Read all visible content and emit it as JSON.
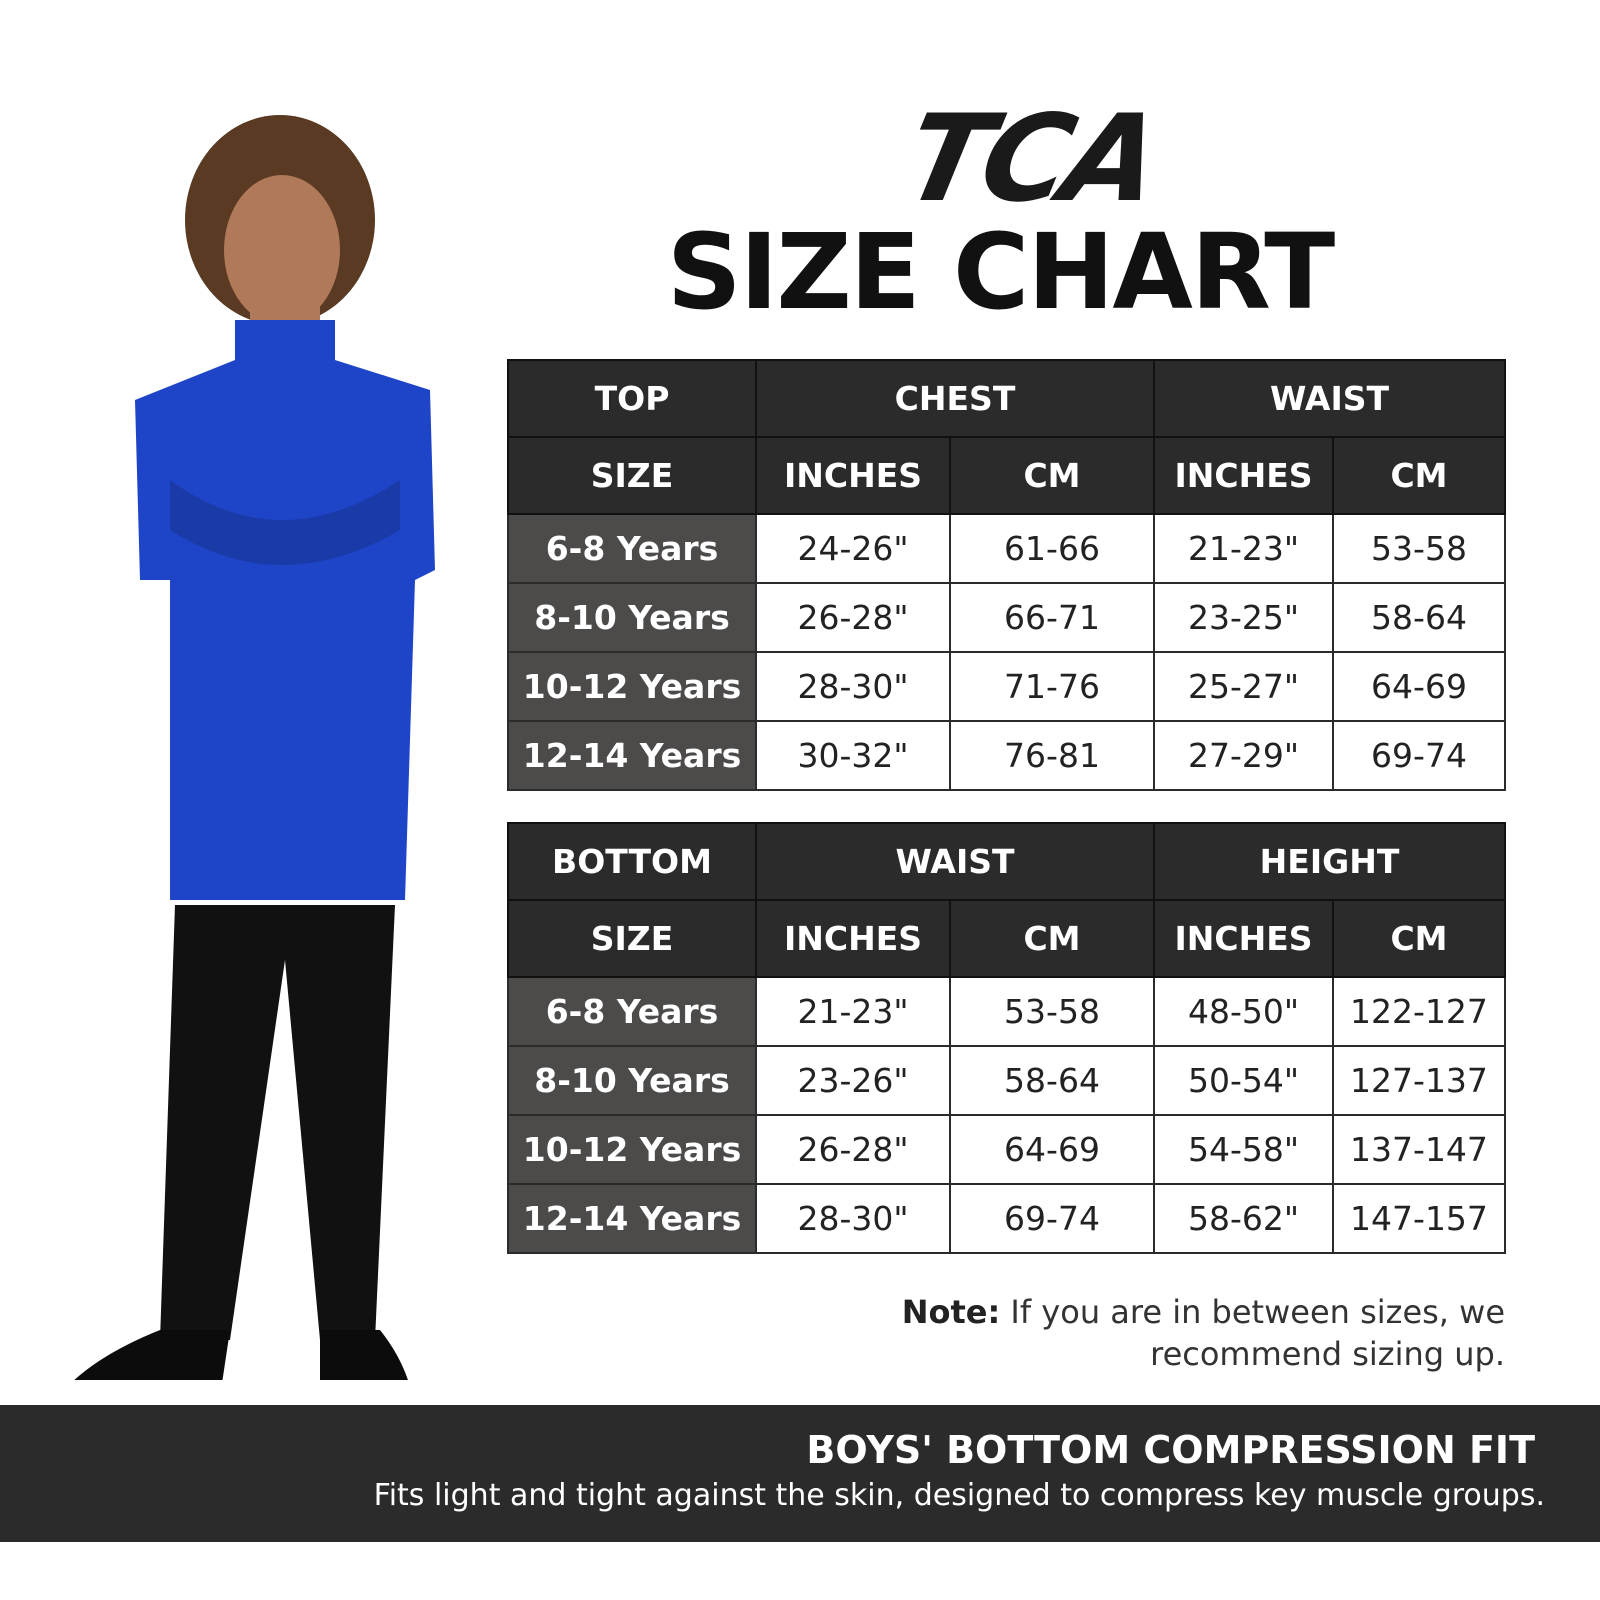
{
  "logo": "TCA",
  "title": "SIZE CHART",
  "tables": [
    {
      "corner": "TOP",
      "size_label": "SIZE",
      "groups": [
        {
          "name": "CHEST",
          "units": [
            "INCHES",
            "CM"
          ]
        },
        {
          "name": "WAIST",
          "units": [
            "INCHES",
            "CM"
          ]
        }
      ],
      "rows": [
        [
          "6-8 Years",
          "24-26\"",
          "61-66",
          "21-23\"",
          "53-58"
        ],
        [
          "8-10 Years",
          "26-28\"",
          "66-71",
          "23-25\"",
          "58-64"
        ],
        [
          "10-12 Years",
          "28-30\"",
          "71-76",
          "25-27\"",
          "64-69"
        ],
        [
          "12-14 Years",
          "30-32\"",
          "76-81",
          "27-29\"",
          "69-74"
        ]
      ]
    },
    {
      "corner": "BOTTOM",
      "size_label": "SIZE",
      "groups": [
        {
          "name": "WAIST",
          "units": [
            "INCHES",
            "CM"
          ]
        },
        {
          "name": "HEIGHT",
          "units": [
            "INCHES",
            "CM"
          ]
        }
      ],
      "rows": [
        [
          "6-8 Years",
          "21-23\"",
          "53-58",
          "48-50\"",
          "122-127"
        ],
        [
          "8-10 Years",
          "23-26\"",
          "58-64",
          "50-54\"",
          "127-137"
        ],
        [
          "10-12 Years",
          "26-28\"",
          "64-69",
          "54-58\"",
          "137-147"
        ],
        [
          "12-14 Years",
          "28-30\"",
          "69-74",
          "58-62\"",
          "147-157"
        ]
      ]
    }
  ],
  "note": {
    "label": "Note:",
    "text": "If you are in between sizes, we recommend sizing up."
  },
  "footer": {
    "title": "BOYS' BOTTOM COMPRESSION FIT",
    "text": "Fits light and tight against the skin, designed to compress key muscle groups."
  }
}
